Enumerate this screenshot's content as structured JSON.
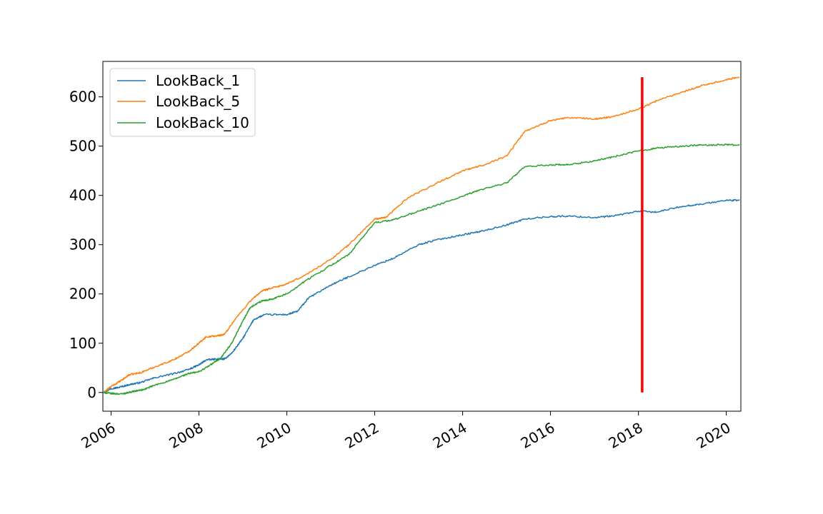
{
  "chart_data": {
    "type": "line",
    "title": "",
    "xlabel": "",
    "ylabel": "",
    "xlim": [
      "2005-10-25",
      "2020-05-01"
    ],
    "ylim": [
      -38,
      672
    ],
    "x_ticks": [
      "2006",
      "2008",
      "2010",
      "2012",
      "2014",
      "2016",
      "2018",
      "2020"
    ],
    "y_ticks": [
      "0",
      "100",
      "200",
      "300",
      "400",
      "500",
      "600"
    ],
    "grid": false,
    "legend": "upper left",
    "series": [
      {
        "name": "LookBack_1",
        "color": "#1f77b4",
        "points": [
          [
            "2005-11-01",
            0
          ],
          [
            "2006-01-01",
            8
          ],
          [
            "2006-03-01",
            10
          ],
          [
            "2006-06-01",
            16
          ],
          [
            "2006-09-01",
            20
          ],
          [
            "2007-01-01",
            30
          ],
          [
            "2007-06-01",
            38
          ],
          [
            "2007-10-01",
            46
          ],
          [
            "2008-01-01",
            56
          ],
          [
            "2008-03-01",
            66
          ],
          [
            "2008-06-01",
            68
          ],
          [
            "2008-08-01",
            68
          ],
          [
            "2008-10-01",
            80
          ],
          [
            "2009-01-01",
            110
          ],
          [
            "2009-04-01",
            148
          ],
          [
            "2009-07-01",
            158
          ],
          [
            "2010-01-01",
            158
          ],
          [
            "2010-04-01",
            165
          ],
          [
            "2010-07-01",
            192
          ],
          [
            "2011-01-01",
            218
          ],
          [
            "2011-06-01",
            235
          ],
          [
            "2012-01-01",
            258
          ],
          [
            "2012-06-01",
            272
          ],
          [
            "2013-01-01",
            300
          ],
          [
            "2013-06-01",
            310
          ],
          [
            "2014-01-01",
            320
          ],
          [
            "2014-06-01",
            327
          ],
          [
            "2015-01-01",
            340
          ],
          [
            "2015-06-01",
            352
          ],
          [
            "2016-01-01",
            357
          ],
          [
            "2016-06-01",
            358
          ],
          [
            "2017-01-01",
            355
          ],
          [
            "2017-06-01",
            358
          ],
          [
            "2018-01-01",
            368
          ],
          [
            "2018-06-01",
            366
          ],
          [
            "2019-01-01",
            378
          ],
          [
            "2019-06-01",
            382
          ],
          [
            "2020-01-01",
            390
          ],
          [
            "2020-04-20",
            390
          ]
        ]
      },
      {
        "name": "LookBack_5",
        "color": "#ff7f0e",
        "points": [
          [
            "2005-11-01",
            0
          ],
          [
            "2006-01-01",
            12
          ],
          [
            "2006-04-01",
            25
          ],
          [
            "2006-06-01",
            36
          ],
          [
            "2006-09-01",
            40
          ],
          [
            "2007-01-01",
            52
          ],
          [
            "2007-06-01",
            66
          ],
          [
            "2007-10-01",
            82
          ],
          [
            "2008-01-01",
            100
          ],
          [
            "2008-03-01",
            113
          ],
          [
            "2008-06-01",
            115
          ],
          [
            "2008-08-01",
            118
          ],
          [
            "2008-11-01",
            150
          ],
          [
            "2009-03-01",
            185
          ],
          [
            "2009-06-01",
            205
          ],
          [
            "2009-08-01",
            210
          ],
          [
            "2010-01-01",
            220
          ],
          [
            "2010-06-01",
            238
          ],
          [
            "2011-01-01",
            270
          ],
          [
            "2011-06-01",
            300
          ],
          [
            "2012-01-01",
            352
          ],
          [
            "2012-04-01",
            355
          ],
          [
            "2012-10-01",
            395
          ],
          [
            "2013-06-01",
            425
          ],
          [
            "2014-01-01",
            450
          ],
          [
            "2014-06-01",
            460
          ],
          [
            "2015-01-01",
            480
          ],
          [
            "2015-06-01",
            530
          ],
          [
            "2016-01-01",
            552
          ],
          [
            "2016-06-01",
            558
          ],
          [
            "2017-01-01",
            555
          ],
          [
            "2017-06-01",
            560
          ],
          [
            "2018-01-01",
            575
          ],
          [
            "2018-06-01",
            592
          ],
          [
            "2019-01-01",
            610
          ],
          [
            "2019-06-01",
            622
          ],
          [
            "2020-01-01",
            635
          ],
          [
            "2020-04-20",
            640
          ]
        ]
      },
      {
        "name": "LookBack_10",
        "color": "#2ca02c",
        "points": [
          [
            "2005-11-01",
            0
          ],
          [
            "2006-01-01",
            -2
          ],
          [
            "2006-04-01",
            -3
          ],
          [
            "2006-07-01",
            2
          ],
          [
            "2006-10-01",
            6
          ],
          [
            "2007-01-01",
            15
          ],
          [
            "2007-06-01",
            26
          ],
          [
            "2007-10-01",
            38
          ],
          [
            "2008-01-01",
            42
          ],
          [
            "2008-04-01",
            55
          ],
          [
            "2008-07-01",
            70
          ],
          [
            "2008-10-01",
            100
          ],
          [
            "2009-01-01",
            145
          ],
          [
            "2009-03-01",
            172
          ],
          [
            "2009-06-01",
            185
          ],
          [
            "2009-09-01",
            190
          ],
          [
            "2010-01-01",
            200
          ],
          [
            "2010-06-01",
            226
          ],
          [
            "2011-01-01",
            258
          ],
          [
            "2011-06-01",
            280
          ],
          [
            "2012-01-01",
            345
          ],
          [
            "2012-06-01",
            350
          ],
          [
            "2013-01-01",
            368
          ],
          [
            "2013-06-01",
            380
          ],
          [
            "2014-01-01",
            398
          ],
          [
            "2014-06-01",
            412
          ],
          [
            "2015-01-01",
            425
          ],
          [
            "2015-06-01",
            458
          ],
          [
            "2016-01-01",
            462
          ],
          [
            "2016-06-01",
            462
          ],
          [
            "2017-01-01",
            470
          ],
          [
            "2017-06-01",
            478
          ],
          [
            "2018-01-01",
            490
          ],
          [
            "2018-06-01",
            496
          ],
          [
            "2019-01-01",
            500
          ],
          [
            "2019-06-01",
            502
          ],
          [
            "2020-01-01",
            503
          ],
          [
            "2020-04-20",
            502
          ]
        ]
      }
    ],
    "annotations": [
      {
        "type": "vline",
        "x": "2018-02-01",
        "y_range": [
          0,
          640
        ],
        "color": "#ff0000"
      }
    ]
  }
}
